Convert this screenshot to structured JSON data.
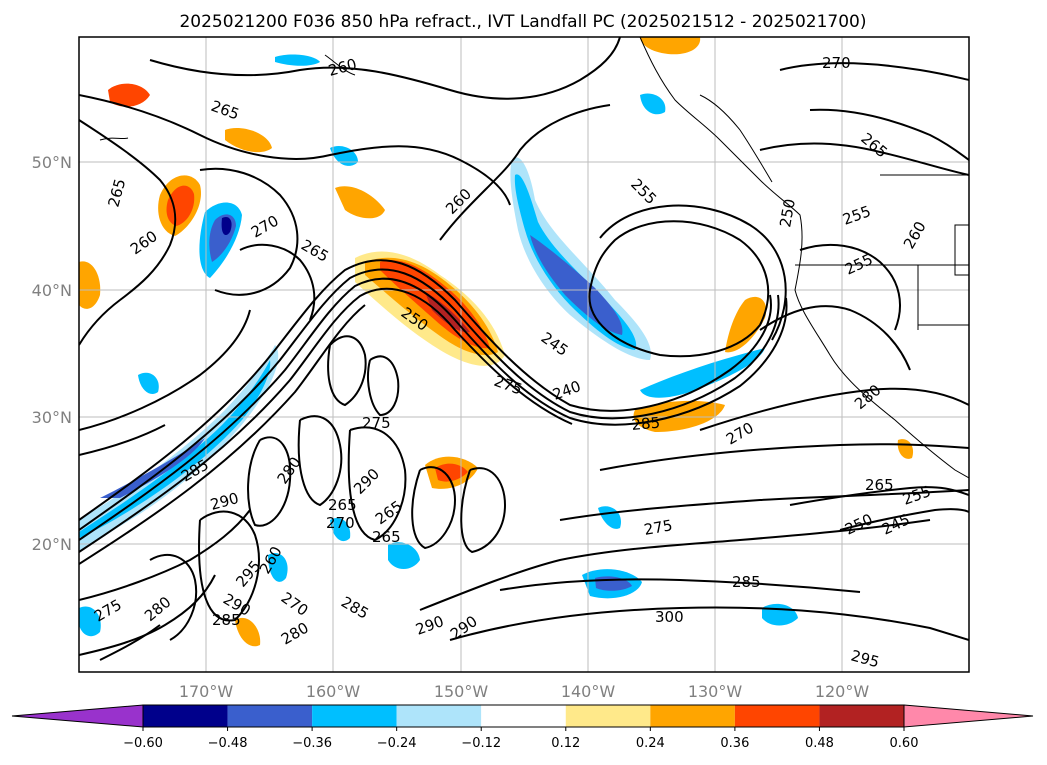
{
  "title": "2025021200 F036 850 hPa refract., IVT Landfall PC (2025021512 - 2025021700)",
  "map": {
    "lat_ticks": [
      "50°N",
      "40°N",
      "30°N",
      "20°N"
    ],
    "lon_ticks": [
      "170°W",
      "160°W",
      "150°W",
      "140°W",
      "130°W",
      "120°W"
    ]
  },
  "contour_labels": [
    "260",
    "270",
    "265",
    "265",
    "260",
    "270",
    "260",
    "265",
    "255",
    "250",
    "255",
    "255",
    "260",
    "265",
    "250",
    "245",
    "240",
    "275",
    "285",
    "270",
    "280",
    "285",
    "265",
    "255",
    "250",
    "245",
    "275",
    "285",
    "290",
    "265",
    "270",
    "290",
    "265",
    "265",
    "275",
    "280",
    "290",
    "300",
    "295",
    "295",
    "270",
    "275",
    "280",
    "280",
    "285",
    "290",
    "260",
    "285",
    "290"
  ],
  "colorbar": {
    "ticks": [
      "−0.60",
      "−0.48",
      "−0.36",
      "−0.24",
      "−0.12",
      "0.12",
      "0.24",
      "0.36",
      "0.48",
      "0.60"
    ],
    "colors": [
      "#9932cc",
      "#00008b",
      "#3a5fcd",
      "#00bfff",
      "#aee4fa",
      "#ffffff",
      "#ffe98a",
      "#ffa500",
      "#ff4500",
      "#b22222",
      "#ff88aa"
    ]
  }
}
